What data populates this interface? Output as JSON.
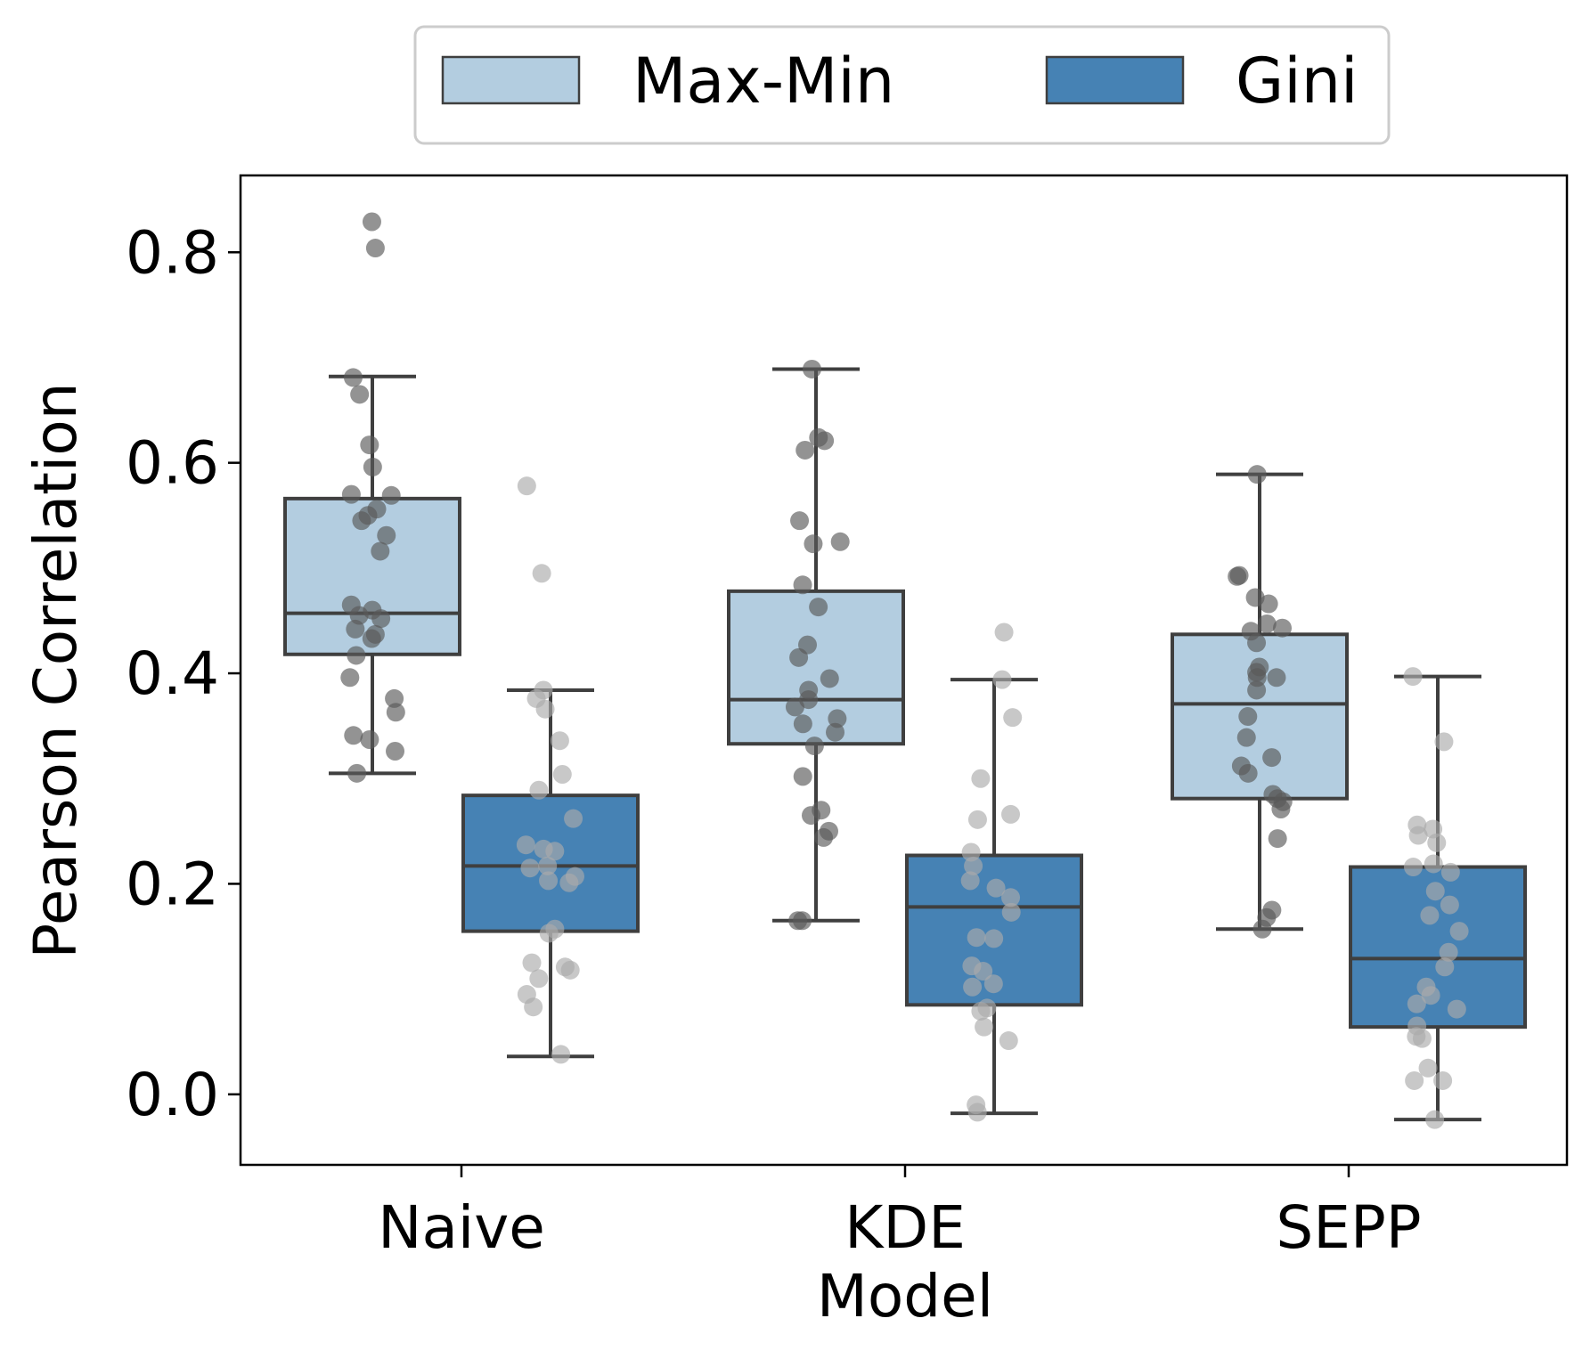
{
  "chart_data": {
    "type": "boxplot",
    "title": "",
    "xlabel": "Model",
    "ylabel": "Pearson Correlation",
    "categories": [
      "Naive",
      "KDE",
      "SEPP"
    ],
    "ylim": [
      -0.067,
      0.873
    ],
    "yticks": [
      0.0,
      0.2,
      0.4,
      0.6,
      0.8
    ],
    "ytick_labels": [
      "0.0",
      "0.2",
      "0.4",
      "0.6",
      "0.8"
    ],
    "legend_position": "top-center",
    "grid": false,
    "series": [
      {
        "name": "Max-Min",
        "color": "#b3cde0",
        "point_color": "#595959",
        "boxes": [
          {
            "category": "Naive",
            "whislo": 0.305,
            "q1": 0.418,
            "med": 0.457,
            "q3": 0.566,
            "whishi": 0.682,
            "points": [
              0.829,
              0.804,
              0.681,
              0.665,
              0.617,
              0.596,
              0.57,
              0.569,
              0.556,
              0.55,
              0.545,
              0.531,
              0.516,
              0.465,
              0.46,
              0.455,
              0.452,
              0.442,
              0.437,
              0.433,
              0.417,
              0.396,
              0.376,
              0.363,
              0.341,
              0.337,
              0.326,
              0.305
            ]
          },
          {
            "category": "KDE",
            "whislo": 0.165,
            "q1": 0.333,
            "med": 0.375,
            "q3": 0.478,
            "whishi": 0.689,
            "points": [
              0.689,
              0.624,
              0.621,
              0.612,
              0.545,
              0.525,
              0.523,
              0.484,
              0.463,
              0.427,
              0.415,
              0.395,
              0.384,
              0.375,
              0.368,
              0.357,
              0.352,
              0.344,
              0.331,
              0.302,
              0.27,
              0.265,
              0.25,
              0.244,
              0.165,
              0.165
            ]
          },
          {
            "category": "SEPP",
            "whislo": 0.157,
            "q1": 0.281,
            "med": 0.371,
            "q3": 0.437,
            "whishi": 0.589,
            "points": [
              0.589,
              0.493,
              0.492,
              0.472,
              0.466,
              0.447,
              0.443,
              0.44,
              0.429,
              0.406,
              0.401,
              0.396,
              0.396,
              0.384,
              0.359,
              0.339,
              0.32,
              0.312,
              0.305,
              0.285,
              0.281,
              0.278,
              0.271,
              0.243,
              0.175,
              0.168,
              0.157
            ]
          }
        ]
      },
      {
        "name": "Gini",
        "color": "#4682b4",
        "point_color": "#aaaaaa",
        "boxes": [
          {
            "category": "Naive",
            "whislo": 0.036,
            "q1": 0.155,
            "med": 0.217,
            "q3": 0.284,
            "whishi": 0.384,
            "points": [
              0.578,
              0.495,
              0.384,
              0.376,
              0.366,
              0.336,
              0.304,
              0.289,
              0.262,
              0.237,
              0.233,
              0.231,
              0.217,
              0.215,
              0.207,
              0.203,
              0.201,
              0.157,
              0.153,
              0.125,
              0.121,
              0.118,
              0.11,
              0.095,
              0.083,
              0.038
            ]
          },
          {
            "category": "KDE",
            "whislo": -0.018,
            "q1": 0.085,
            "med": 0.178,
            "q3": 0.227,
            "whishi": 0.394,
            "points": [
              0.439,
              0.394,
              0.358,
              0.3,
              0.266,
              0.261,
              0.23,
              0.217,
              0.203,
              0.196,
              0.187,
              0.173,
              0.149,
              0.148,
              0.122,
              0.117,
              0.105,
              0.102,
              0.082,
              0.079,
              0.064,
              0.051,
              -0.01,
              -0.017
            ]
          },
          {
            "category": "SEPP",
            "whislo": -0.024,
            "q1": 0.064,
            "med": 0.129,
            "q3": 0.216,
            "whishi": 0.397,
            "points": [
              0.397,
              0.335,
              0.256,
              0.252,
              0.246,
              0.239,
              0.219,
              0.216,
              0.211,
              0.193,
              0.18,
              0.17,
              0.155,
              0.135,
              0.121,
              0.102,
              0.094,
              0.086,
              0.081,
              0.065,
              0.055,
              0.053,
              0.025,
              0.013,
              0.013,
              -0.024
            ]
          }
        ]
      }
    ]
  }
}
